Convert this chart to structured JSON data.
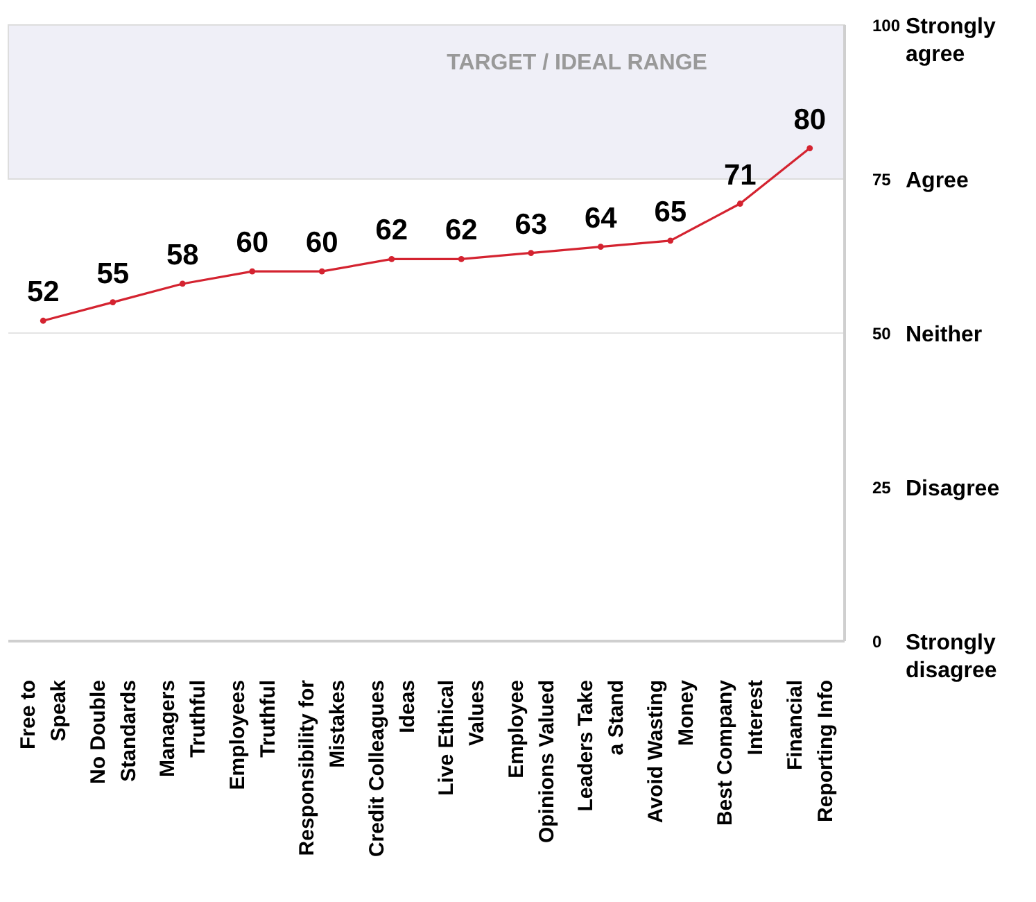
{
  "chart_data": {
    "type": "line",
    "categories": [
      "Free to\nSpeak",
      "No Double\nStandards",
      "Managers\nTruthful",
      "Employees\nTruthful",
      "Responsibility for\nMistakes",
      "Credit Colleagues\nIdeas",
      "Live Ethical\nValues",
      "Employee\nOpinions Valued",
      "Leaders Take\na Stand",
      "Avoid Wasting\nMoney",
      "Best Company\nInterest",
      "Financial\nReporting Info"
    ],
    "series": [
      {
        "color": "#d42330",
        "values": [
          52,
          55,
          58,
          60,
          60,
          62,
          62,
          63,
          64,
          65,
          71,
          80
        ]
      }
    ],
    "ylim": [
      0,
      100
    ],
    "yticks": [
      0,
      25,
      50,
      75,
      100
    ],
    "annotations": [
      "Strongly disagree",
      "Disagree",
      "Neither",
      "Agree",
      "Strongly agree"
    ],
    "bands": [
      {
        "axis": "y",
        "from": 75,
        "to": 100,
        "label": "TARGET / IDEAL RANGE",
        "color": "#efeff7"
      }
    ],
    "ref_lines": [
      {
        "axis": "y",
        "value": 50,
        "color": "#e4e4e4"
      }
    ],
    "data_labels": true,
    "marker": "circle"
  }
}
